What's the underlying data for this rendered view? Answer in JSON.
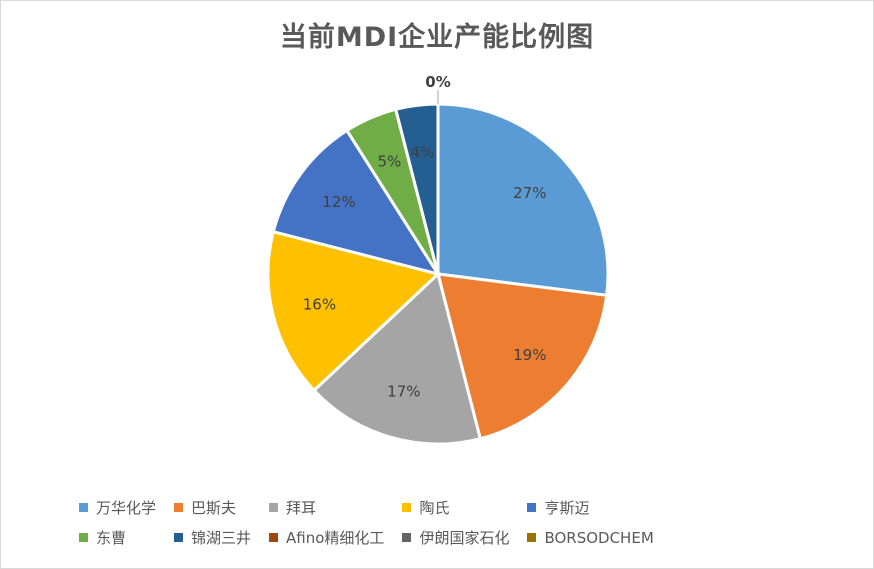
{
  "chart_data": {
    "type": "pie",
    "title": "当前MDI企业产能比例图",
    "slices": [
      {
        "label": "万华化学",
        "value": 27,
        "display": "27%",
        "color": "#5B9BD5"
      },
      {
        "label": "巴斯夫",
        "value": 19,
        "display": "19%",
        "color": "#ED7D31"
      },
      {
        "label": "拜耳",
        "value": 17,
        "display": "17%",
        "color": "#A5A5A5"
      },
      {
        "label": "陶氏",
        "value": 16,
        "display": "16%",
        "color": "#FFC000"
      },
      {
        "label": "亨斯迈",
        "value": 12,
        "display": "12%",
        "color": "#4472C4"
      },
      {
        "label": "东曹",
        "value": 5,
        "display": "5%",
        "color": "#70AD47"
      },
      {
        "label": "锦湖三井",
        "value": 4,
        "display": "4%",
        "color": "#255E91"
      },
      {
        "label": "Afino精细化工",
        "value": 0,
        "display": "0%",
        "color": "#9E480E"
      },
      {
        "label": "伊朗国家石化",
        "value": 0,
        "display": "0%",
        "color": "#636363"
      },
      {
        "label": "BORSODCHEM",
        "value": 0,
        "display": "0%",
        "color": "#997300"
      }
    ],
    "legend_position": "bottom"
  }
}
